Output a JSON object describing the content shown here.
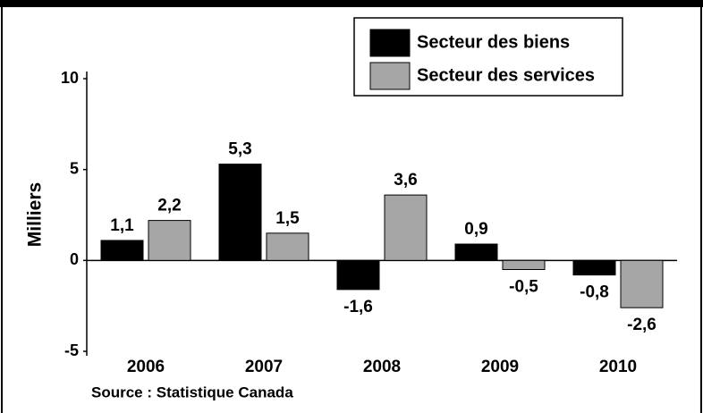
{
  "chart_data": {
    "type": "bar",
    "y_label": "Milliers",
    "source": "Source : Statistique Canada",
    "categories": [
      "2006",
      "2007",
      "2008",
      "2009",
      "2010"
    ],
    "series": [
      {
        "name": "Secteur des biens",
        "color": "#000000",
        "values": [
          1.1,
          5.3,
          -1.6,
          0.9,
          -0.8
        ],
        "value_labels": [
          "1,1",
          "5,3",
          "-1,6",
          "0,9",
          "-0,8"
        ]
      },
      {
        "name": "Secteur des services",
        "color": "#a6a6a6",
        "values": [
          2.2,
          1.5,
          3.6,
          -0.5,
          -2.6
        ],
        "value_labels": [
          "2,2",
          "1,5",
          "3,6",
          "-0,5",
          "-2,6"
        ]
      }
    ],
    "ylim": [
      -5,
      10
    ],
    "yticks": [
      -5,
      0,
      5,
      10
    ],
    "legend": "upper right",
    "grid": false
  }
}
